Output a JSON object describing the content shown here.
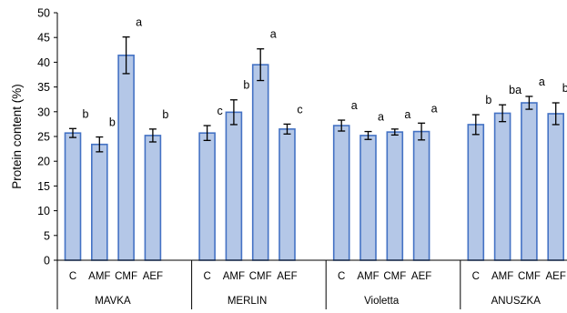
{
  "chart_data": {
    "type": "bar",
    "ylabel": "Protein content (%)",
    "ylim": [
      0,
      50
    ],
    "yticks": [
      0,
      5,
      10,
      15,
      20,
      25,
      30,
      35,
      40,
      45,
      50
    ],
    "grid": false,
    "legend": "none",
    "colors": {
      "bar_fill": "#b4c7e7",
      "bar_edge": "#4472c4",
      "axis": "#000000"
    },
    "groups": [
      {
        "name": "MAVKA",
        "categories": [
          "C",
          "AMF",
          "CMF",
          "AEF"
        ],
        "values": [
          25.7,
          23.4,
          41.4,
          25.2
        ],
        "errors": [
          0.9,
          1.5,
          3.7,
          1.3
        ],
        "letters": [
          "b",
          "b",
          "a",
          "b"
        ]
      },
      {
        "name": "MERLIN",
        "categories": [
          "C",
          "AMF",
          "CMF",
          "AEF"
        ],
        "values": [
          25.7,
          29.9,
          39.5,
          26.5
        ],
        "errors": [
          1.5,
          2.5,
          3.2,
          1.0
        ],
        "letters": [
          "c",
          "b",
          "a",
          "c"
        ]
      },
      {
        "name": "Violetta",
        "categories": [
          "C",
          "AMF",
          "CMF",
          "AEF"
        ],
        "values": [
          27.2,
          25.2,
          25.9,
          26.0
        ],
        "errors": [
          1.1,
          0.8,
          0.6,
          1.7
        ],
        "letters": [
          "a",
          "a",
          "a",
          "a"
        ]
      },
      {
        "name": "ANUSZKA",
        "categories": [
          "C",
          "AMF",
          "CMF",
          "AEF"
        ],
        "values": [
          27.4,
          29.7,
          31.8,
          29.6
        ],
        "errors": [
          2.0,
          1.7,
          1.3,
          2.2
        ],
        "letters": [
          "b",
          "ba",
          "a",
          "ba"
        ]
      }
    ]
  }
}
